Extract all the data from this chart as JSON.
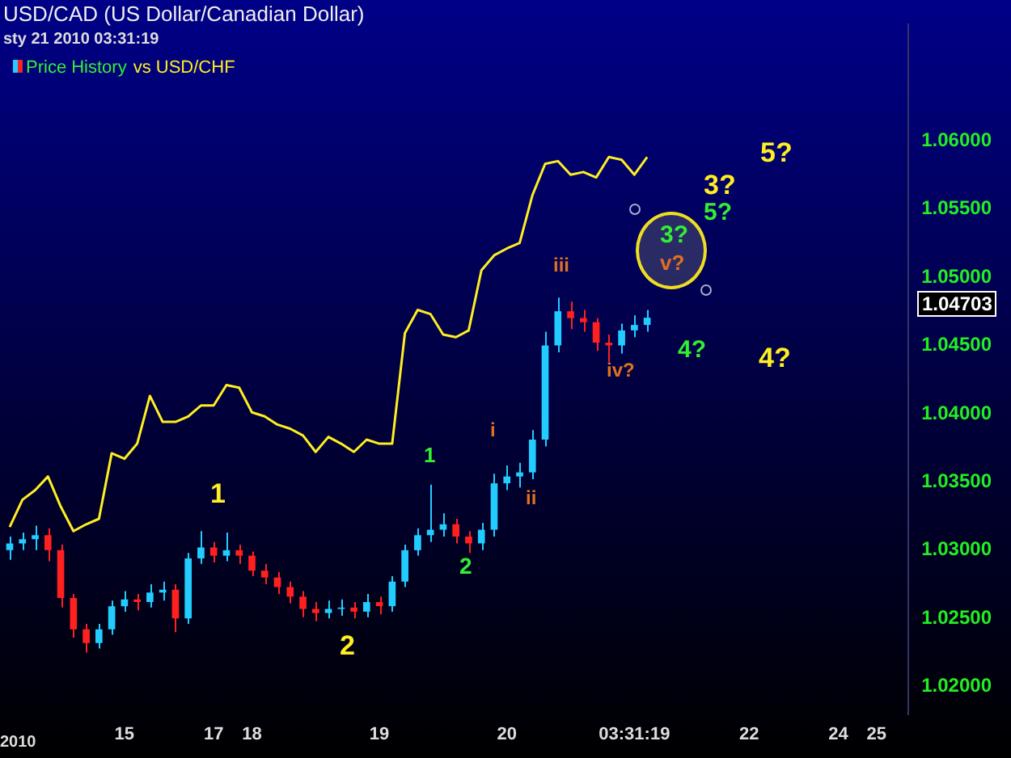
{
  "chart_data": {
    "type": "candlestick",
    "title": "USD/CAD (US Dollar/Canadian Dollar)",
    "subtitle": "sty 21 2010 03:31:19",
    "categories": [
      null,
      null,
      null,
      null,
      null,
      null,
      null,
      null,
      null,
      "15",
      null,
      null,
      null,
      null,
      null,
      null,
      "17",
      null,
      null,
      "18",
      null,
      null,
      null,
      null,
      null,
      null,
      null,
      null,
      null,
      "19",
      null,
      null,
      null,
      null,
      null,
      null,
      null,
      null,
      null,
      "20",
      null,
      null,
      null,
      null,
      null,
      null,
      null,
      null,
      null,
      "03:31:19",
      null,
      null,
      null,
      null,
      null,
      null,
      null,
      null,
      "22",
      null,
      null,
      null,
      null,
      null,
      null,
      "24",
      null,
      null,
      "25",
      null,
      null
    ],
    "series": [
      {
        "name": "Price History",
        "ohlc": [
          [
            1.03,
            1.031,
            1.0293,
            1.0305
          ],
          [
            1.0305,
            1.0313,
            1.03,
            1.0308
          ],
          [
            1.0308,
            1.0318,
            1.03,
            1.0311
          ],
          [
            1.0311,
            1.0316,
            1.0292,
            1.03
          ],
          [
            1.03,
            1.0304,
            1.0258,
            1.0265
          ],
          [
            1.0265,
            1.0268,
            1.0236,
            1.0242
          ],
          [
            1.0242,
            1.0246,
            1.0225,
            1.0232
          ],
          [
            1.0232,
            1.0246,
            1.0228,
            1.0242
          ],
          [
            1.0242,
            1.0263,
            1.0238,
            1.0259
          ],
          [
            1.0259,
            1.027,
            1.0255,
            1.0264
          ],
          [
            1.0264,
            1.0268,
            1.0256,
            1.0262
          ],
          [
            1.0262,
            1.0275,
            1.0258,
            1.0269
          ],
          [
            1.0269,
            1.0277,
            1.0263,
            1.0271
          ],
          [
            1.0271,
            1.0275,
            1.024,
            1.025
          ],
          [
            1.025,
            1.0298,
            1.0246,
            1.0294
          ],
          [
            1.0294,
            1.0314,
            1.029,
            1.0302
          ],
          [
            1.0302,
            1.0306,
            1.0291,
            1.0296
          ],
          [
            1.0296,
            1.0313,
            1.0292,
            1.03
          ],
          [
            1.03,
            1.0304,
            1.029,
            1.0296
          ],
          [
            1.0296,
            1.0299,
            1.0281,
            1.0285
          ],
          [
            1.0285,
            1.029,
            1.0275,
            1.028
          ],
          [
            1.028,
            1.0284,
            1.0268,
            1.0273
          ],
          [
            1.0273,
            1.0277,
            1.0261,
            1.0266
          ],
          [
            1.0266,
            1.027,
            1.0251,
            1.0257
          ],
          [
            1.0257,
            1.0262,
            1.0248,
            1.0254
          ],
          [
            1.0254,
            1.0263,
            1.025,
            1.0257
          ],
          [
            1.0257,
            1.0264,
            1.0252,
            1.0258
          ],
          [
            1.0258,
            1.0262,
            1.025,
            1.0255
          ],
          [
            1.0255,
            1.0268,
            1.0251,
            1.0262
          ],
          [
            1.0262,
            1.0266,
            1.0253,
            1.0259
          ],
          [
            1.0259,
            1.0281,
            1.0255,
            1.0277
          ],
          [
            1.0277,
            1.0304,
            1.0273,
            1.03
          ],
          [
            1.03,
            1.0316,
            1.0296,
            1.0311
          ],
          [
            1.0311,
            1.0348,
            1.0306,
            1.0315
          ],
          [
            1.0315,
            1.0327,
            1.031,
            1.0319
          ],
          [
            1.0319,
            1.0323,
            1.0305,
            1.031
          ],
          [
            1.031,
            1.0314,
            1.0298,
            1.0305
          ],
          [
            1.0305,
            1.032,
            1.03,
            1.0315
          ],
          [
            1.0315,
            1.0356,
            1.031,
            1.0349
          ],
          [
            1.0349,
            1.0362,
            1.0344,
            1.0354
          ],
          [
            1.0354,
            1.0364,
            1.0346,
            1.0357
          ],
          [
            1.0357,
            1.0388,
            1.0352,
            1.0381
          ],
          [
            1.0381,
            1.046,
            1.0376,
            1.045
          ],
          [
            1.045,
            1.0485,
            1.0445,
            1.0475
          ],
          [
            1.0475,
            1.0482,
            1.0462,
            1.047
          ],
          [
            1.047,
            1.0476,
            1.046,
            1.0467
          ],
          [
            1.0467,
            1.047,
            1.0446,
            1.0452
          ],
          [
            1.0452,
            1.0458,
            1.0438,
            1.045
          ],
          [
            1.045,
            1.0466,
            1.0444,
            1.0461
          ],
          [
            1.0461,
            1.0472,
            1.0456,
            1.0465
          ],
          [
            1.0465,
            1.0476,
            1.046,
            1.04703
          ],
          null,
          null,
          null,
          null,
          null,
          null,
          null,
          null,
          null,
          null,
          null,
          null,
          null,
          null,
          null,
          null,
          null,
          null,
          null,
          null
        ]
      },
      {
        "name": "vs USD/CHF",
        "type": "line",
        "color": "#ffee22",
        "values": [
          1.0317,
          1.0337,
          1.0344,
          1.0354,
          1.0332,
          1.0314,
          1.0319,
          1.0323,
          1.0371,
          1.0367,
          1.0378,
          1.0413,
          1.0394,
          1.0394,
          1.0398,
          1.0406,
          1.0406,
          1.0421,
          1.0419,
          1.0401,
          1.0398,
          1.0392,
          1.0389,
          1.0384,
          1.0372,
          1.0383,
          1.0378,
          1.0372,
          1.0381,
          1.0378,
          1.0378,
          1.0459,
          1.0476,
          1.0473,
          1.0458,
          1.0456,
          1.0461,
          1.0505,
          1.0516,
          1.0521,
          1.0525,
          1.056,
          1.0583,
          1.0585,
          1.0575,
          1.0577,
          1.0573,
          1.0588,
          1.0586,
          1.0575,
          1.0588,
          null,
          null,
          null,
          null,
          null,
          null,
          null,
          null,
          null,
          null,
          null,
          null,
          null,
          null,
          null,
          null,
          null,
          null,
          null,
          null
        ]
      }
    ],
    "ylim": [
      1.018,
      1.0685
    ],
    "yticks": [
      {
        "value": 1.02,
        "label": "1.02000"
      },
      {
        "value": 1.025,
        "label": "1.02500"
      },
      {
        "value": 1.03,
        "label": "1.03000"
      },
      {
        "value": 1.035,
        "label": "1.03500"
      },
      {
        "value": 1.04,
        "label": "1.04000"
      },
      {
        "value": 1.045,
        "label": "1.04500"
      },
      {
        "value": 1.05,
        "label": "1.05000"
      },
      {
        "value": 1.055,
        "label": "1.05500"
      },
      {
        "value": 1.06,
        "label": "1.06000"
      }
    ],
    "grid": false,
    "legend": "top left",
    "marker": "none",
    "annotations": [
      "1",
      "2",
      "1",
      "2",
      "i",
      "ii",
      "iii",
      "iv?",
      "v?",
      "3?",
      "5?",
      "4?",
      "3?",
      "5?",
      "4?",
      "2010",
      "1.04703"
    ]
  }
}
